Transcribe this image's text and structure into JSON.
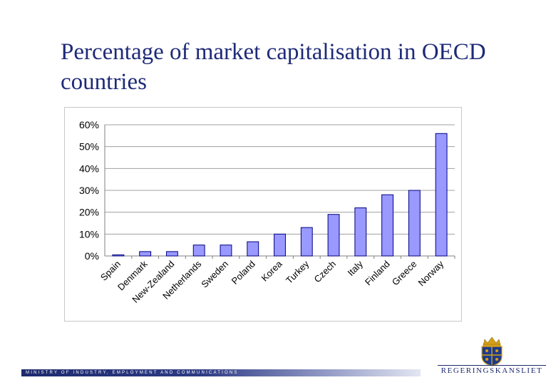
{
  "slide": {
    "title": "Percentage of market capitalisation in OECD countries",
    "footer": "MINISTRY OF INDUSTRY, EMPLOYMENT AND COMMUNICATIONS",
    "logo_text": "REGERINGSKANSLIET"
  },
  "chart_data": {
    "type": "bar",
    "title": "",
    "xlabel": "",
    "ylabel": "",
    "categories": [
      "Spain",
      "Denmark",
      "New-Zealand",
      "Netherlands",
      "Sweden",
      "Poland",
      "Korea",
      "Turkey",
      "Czech",
      "Italy",
      "Finland",
      "Greece",
      "Norway"
    ],
    "values": [
      0.5,
      2,
      2,
      5,
      5,
      6.5,
      10,
      13,
      19,
      22,
      28,
      30,
      56
    ],
    "ylim": [
      0,
      60
    ],
    "yticks": [
      "0%",
      "10%",
      "20%",
      "30%",
      "40%",
      "50%",
      "60%"
    ],
    "grid": true,
    "bar_color": "#9999ff",
    "bar_edge": "#000080"
  }
}
